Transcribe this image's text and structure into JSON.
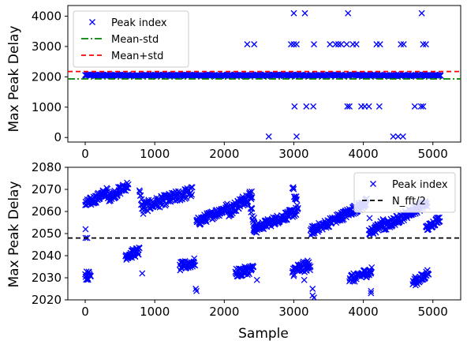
{
  "chart_data": [
    {
      "type": "scatter",
      "ylabel": "Max Peak Delay",
      "xlabel": "",
      "xlim": [
        -250,
        5400
      ],
      "ylim": [
        -150,
        4350
      ],
      "xticks": [
        0,
        1000,
        2000,
        3000,
        4000,
        5000
      ],
      "yticks": [
        0,
        1000,
        2000,
        3000,
        4000
      ],
      "grid": false,
      "legend_position": "top-left",
      "series": [
        {
          "name": "Peak index",
          "marker": "x",
          "color": "#0000ff",
          "band": {
            "x_start": 0,
            "x_end": 5120,
            "y_min": 2025,
            "y_max": 2075
          },
          "points": [
            [
              3000,
              4096
            ],
            [
              3160,
              4096
            ],
            [
              3780,
              4096
            ],
            [
              4840,
              4096
            ],
            [
              2330,
              3072
            ],
            [
              2430,
              3072
            ],
            [
              2960,
              3072
            ],
            [
              3000,
              3072
            ],
            [
              3040,
              3072
            ],
            [
              3290,
              3072
            ],
            [
              3520,
              3072
            ],
            [
              3600,
              3072
            ],
            [
              3640,
              3072
            ],
            [
              3680,
              3072
            ],
            [
              3760,
              3072
            ],
            [
              3850,
              3072
            ],
            [
              3900,
              3072
            ],
            [
              4190,
              3072
            ],
            [
              4240,
              3072
            ],
            [
              4540,
              3072
            ],
            [
              4580,
              3072
            ],
            [
              4860,
              3072
            ],
            [
              4900,
              3072
            ],
            [
              3010,
              1024
            ],
            [
              3180,
              1024
            ],
            [
              3280,
              1024
            ],
            [
              3770,
              1024
            ],
            [
              3800,
              1024
            ],
            [
              3970,
              1024
            ],
            [
              4020,
              1024
            ],
            [
              4080,
              1024
            ],
            [
              4230,
              1024
            ],
            [
              4740,
              1024
            ],
            [
              4830,
              1024
            ],
            [
              4860,
              1024
            ],
            [
              2640,
              32
            ],
            [
              3040,
              32
            ],
            [
              4430,
              32
            ],
            [
              4500,
              32
            ],
            [
              4570,
              32
            ]
          ]
        },
        {
          "name": "Mean-std",
          "style": "dash-dot",
          "color": "#008000",
          "y": 1930
        },
        {
          "name": "Mean+std",
          "style": "dashed",
          "color": "#ff0000",
          "y": 2175
        }
      ]
    },
    {
      "type": "scatter",
      "xlabel": "Sample",
      "ylabel": "Max Peak Delay",
      "xlim": [
        -250,
        5400
      ],
      "ylim": [
        2020,
        2080
      ],
      "xticks": [
        0,
        1000,
        2000,
        3000,
        4000,
        5000
      ],
      "yticks": [
        2020,
        2030,
        2040,
        2050,
        2060,
        2070,
        2080
      ],
      "grid": false,
      "legend_position": "top-right",
      "series": [
        {
          "name": "Peak index",
          "marker": "x",
          "color": "#0000ff",
          "segments": [
            {
              "x": [
                0,
                320
              ],
              "y": [
                2063,
                2069
              ],
              "spread": 4
            },
            {
              "x": [
                320,
                620
              ],
              "y": [
                2066,
                2072
              ],
              "spread": 4
            },
            {
              "x": [
                780,
                840
              ],
              "y": [
                2068,
                2060
              ],
              "spread": 5
            },
            {
              "x": [
                840,
                1540
              ],
              "y": [
                2062,
                2069
              ],
              "spread": 5
            },
            {
              "x": [
                1600,
                2060
              ],
              "y": [
                2055,
                2062
              ],
              "spread": 4
            },
            {
              "x": [
                2060,
                2400
              ],
              "y": [
                2060,
                2068
              ],
              "spread": 5
            },
            {
              "x": [
                2380,
                2470
              ],
              "y": [
                2062,
                2050
              ],
              "spread": 4
            },
            {
              "x": [
                2420,
                3040
              ],
              "y": [
                2052,
                2060
              ],
              "spread": 4
            },
            {
              "x": [
                2980,
                3060
              ],
              "y": [
                2070,
                2062
              ],
              "spread": 5
            },
            {
              "x": [
                3240,
                3700
              ],
              "y": [
                2051,
                2058
              ],
              "spread": 4
            },
            {
              "x": [
                3640,
                4050
              ],
              "y": [
                2057,
                2064
              ],
              "spread": 4
            },
            {
              "x": [
                4080,
                4300
              ],
              "y": [
                2050,
                2055
              ],
              "spread": 4
            },
            {
              "x": [
                4300,
                4920
              ],
              "y": [
                2053,
                2064
              ],
              "spread": 4
            },
            {
              "x": [
                4900,
                5100
              ],
              "y": [
                2052,
                2057
              ],
              "spread": 3
            },
            {
              "x": [
                0,
                80
              ],
              "y": [
                2031,
                2031
              ],
              "spread": 4
            },
            {
              "x": [
                580,
                780
              ],
              "y": [
                2040,
                2042
              ],
              "spread": 4
            },
            {
              "x": [
                1360,
                1580
              ],
              "y": [
                2035,
                2037
              ],
              "spread": 4
            },
            {
              "x": [
                2160,
                2420
              ],
              "y": [
                2032,
                2034
              ],
              "spread": 4
            },
            {
              "x": [
                2980,
                3240
              ],
              "y": [
                2033,
                2036
              ],
              "spread": 5
            },
            {
              "x": [
                3800,
                3930
              ],
              "y": [
                2030,
                2030
              ],
              "spread": 4
            },
            {
              "x": [
                3930,
                4120
              ],
              "y": [
                2031,
                2033
              ],
              "spread": 4
            },
            {
              "x": [
                4710,
                4860
              ],
              "y": [
                2028,
                2030
              ],
              "spread": 4
            },
            {
              "x": [
                4860,
                4940
              ],
              "y": [
                2030,
                2033
              ],
              "spread": 3
            }
          ],
          "points": [
            [
              5,
              2052
            ],
            [
              5,
              2048
            ],
            [
              30,
              2048
            ],
            [
              1590,
              2025
            ],
            [
              1600,
              2024
            ],
            [
              3270,
              2025
            ],
            [
              3270,
              2022
            ],
            [
              3290,
              2021
            ],
            [
              4110,
              2023
            ],
            [
              4110,
              2024
            ],
            [
              4090,
              2057
            ],
            [
              2470,
              2029
            ],
            [
              820,
              2032
            ],
            [
              3150,
              2029
            ]
          ]
        },
        {
          "name": "N_fft/2",
          "style": "dashed",
          "color": "#000000",
          "y": 2048
        }
      ]
    }
  ]
}
